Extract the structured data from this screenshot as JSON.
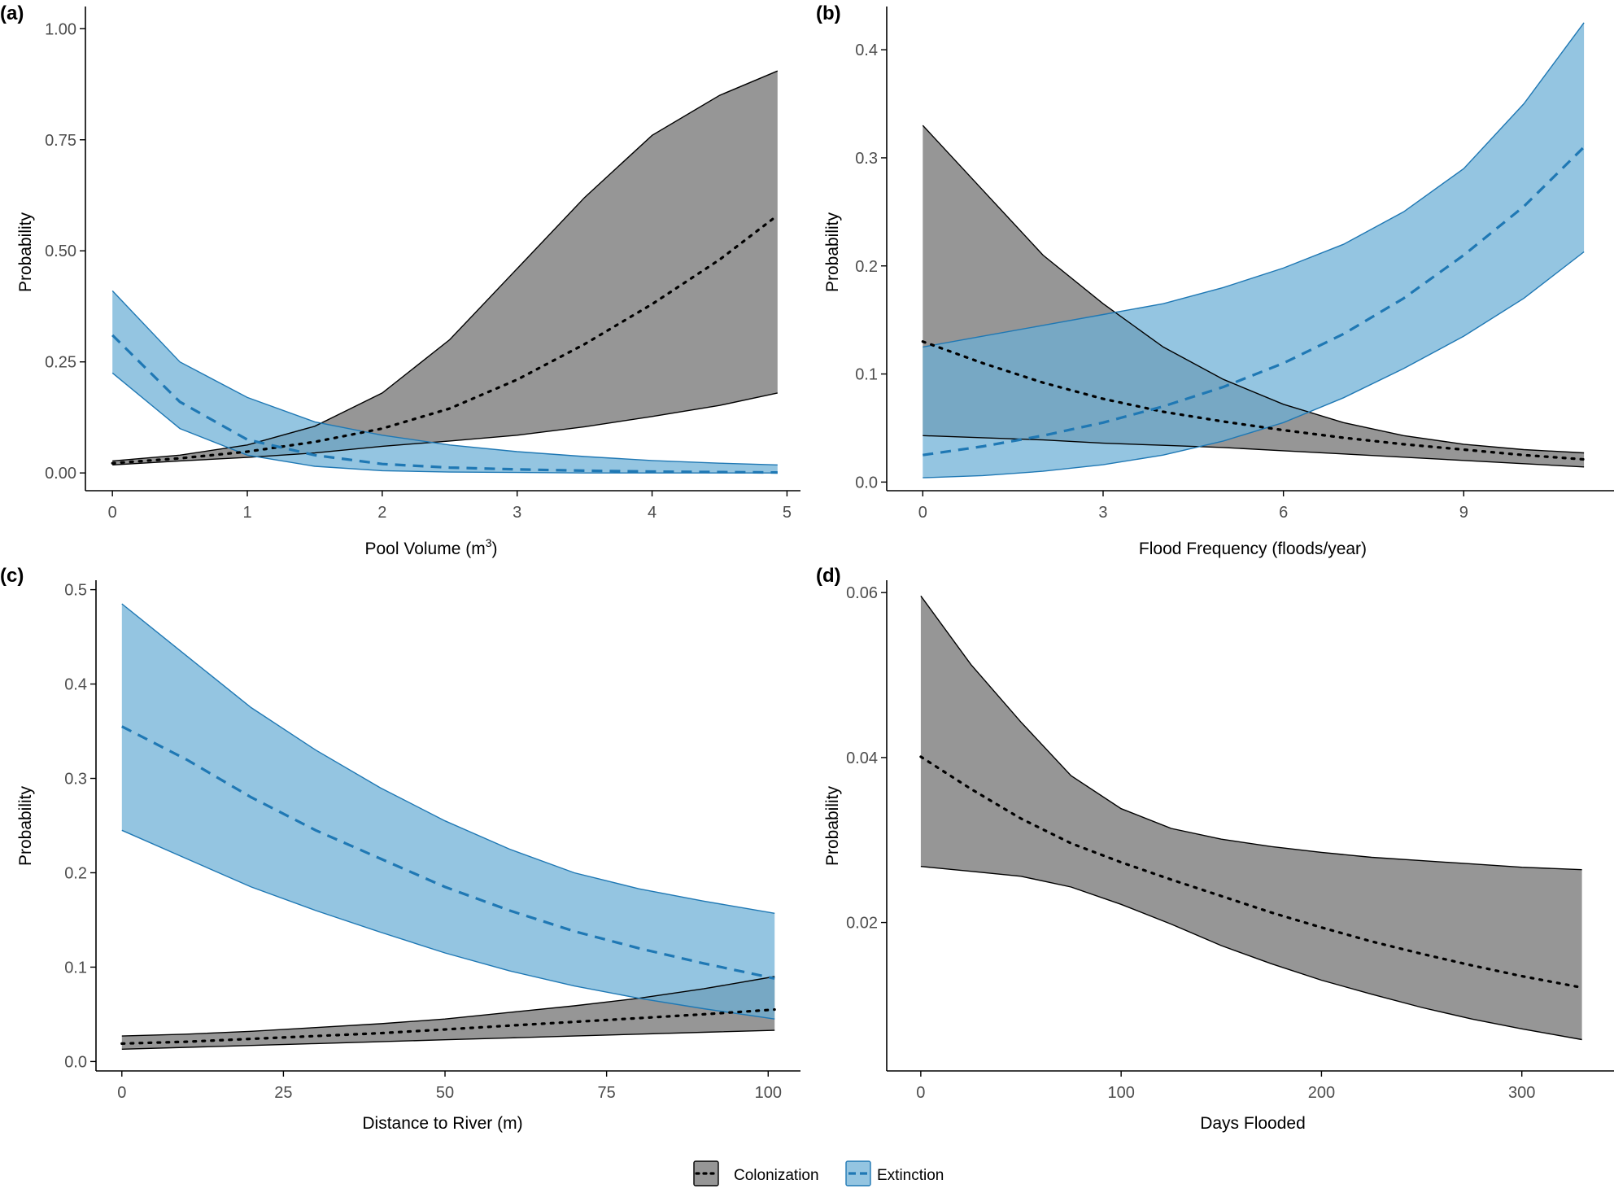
{
  "colors": {
    "colonization_fill": "#7f7f7f",
    "colonization_line": "#000000",
    "extinction_fill": "#6baed6",
    "extinction_line": "#1f78b4",
    "axis": "#000000",
    "tick_label": "#4d4d4d"
  },
  "legend": {
    "items": [
      {
        "key": "colonization",
        "label": "Colonization"
      },
      {
        "key": "extinction",
        "label": "Extinction"
      }
    ]
  },
  "chart_data": [
    {
      "panel_label": "(a)",
      "type": "area",
      "xlabel": "Pool Volume (m",
      "xlabel_sup": "3",
      "xlabel_suffix": ")",
      "ylabel": "Probability",
      "xlim": [
        -0.2,
        5.1
      ],
      "ylim": [
        -0.04,
        1.05
      ],
      "xticks": [
        0,
        1,
        2,
        3,
        4,
        5
      ],
      "xtick_labels": [
        "0",
        "1",
        "2",
        "3",
        "4",
        "5"
      ],
      "yticks": [
        0,
        0.25,
        0.5,
        0.75,
        1.0
      ],
      "ytick_labels": [
        "0.00",
        "0.25",
        "0.50",
        "0.75",
        "1.00"
      ],
      "series": [
        {
          "name": "Colonization",
          "key": "colonization",
          "x": [
            0,
            0.5,
            1,
            1.5,
            2,
            2.5,
            3,
            3.5,
            4,
            4.5,
            4.93
          ],
          "mean": [
            0.022,
            0.033,
            0.048,
            0.07,
            0.1,
            0.145,
            0.21,
            0.29,
            0.38,
            0.48,
            0.58
          ],
          "lower": [
            0.018,
            0.027,
            0.035,
            0.045,
            0.06,
            0.072,
            0.085,
            0.104,
            0.127,
            0.152,
            0.18
          ],
          "upper": [
            0.027,
            0.04,
            0.063,
            0.105,
            0.18,
            0.3,
            0.46,
            0.62,
            0.76,
            0.85,
            0.905
          ]
        },
        {
          "name": "Extinction",
          "key": "extinction",
          "x": [
            0,
            0.5,
            1,
            1.5,
            2,
            2.5,
            3,
            3.5,
            4,
            4.5,
            4.93
          ],
          "mean": [
            0.31,
            0.16,
            0.075,
            0.04,
            0.02,
            0.012,
            0.008,
            0.005,
            0.003,
            0.002,
            0.001
          ],
          "lower": [
            0.225,
            0.1,
            0.04,
            0.015,
            0.005,
            0.002,
            0.001,
            0.0,
            0.0,
            0.0,
            0.0
          ],
          "upper": [
            0.41,
            0.25,
            0.17,
            0.115,
            0.085,
            0.063,
            0.048,
            0.037,
            0.028,
            0.022,
            0.018
          ]
        }
      ]
    },
    {
      "panel_label": "(b)",
      "type": "area",
      "xlabel": "Flood Frequency (floods/year)",
      "ylabel": "Probability",
      "xlim": [
        -0.6,
        11.5
      ],
      "ylim": [
        -0.008,
        0.44
      ],
      "xticks": [
        0,
        3,
        6,
        9
      ],
      "xtick_labels": [
        "0",
        "3",
        "6",
        "9"
      ],
      "yticks": [
        0,
        0.1,
        0.2,
        0.3,
        0.4
      ],
      "ytick_labels": [
        "0.0",
        "0.1",
        "0.2",
        "0.3",
        "0.4"
      ],
      "series": [
        {
          "name": "Colonization",
          "key": "colonization",
          "x": [
            0,
            1,
            2,
            3,
            4,
            5,
            6,
            7,
            8,
            9,
            10,
            11
          ],
          "mean": [
            0.13,
            0.11,
            0.092,
            0.077,
            0.065,
            0.056,
            0.048,
            0.041,
            0.035,
            0.03,
            0.025,
            0.021
          ],
          "lower": [
            0.043,
            0.041,
            0.039,
            0.036,
            0.034,
            0.032,
            0.029,
            0.026,
            0.023,
            0.02,
            0.017,
            0.014
          ],
          "upper": [
            0.33,
            0.27,
            0.21,
            0.165,
            0.125,
            0.095,
            0.072,
            0.055,
            0.043,
            0.035,
            0.03,
            0.027
          ]
        },
        {
          "name": "Extinction",
          "key": "extinction",
          "x": [
            0,
            1,
            2,
            3,
            4,
            5,
            6,
            7,
            8,
            9,
            10,
            11
          ],
          "mean": [
            0.025,
            0.033,
            0.043,
            0.055,
            0.07,
            0.088,
            0.11,
            0.137,
            0.17,
            0.21,
            0.255,
            0.31
          ],
          "lower": [
            0.004,
            0.006,
            0.01,
            0.016,
            0.025,
            0.038,
            0.055,
            0.078,
            0.105,
            0.135,
            0.17,
            0.213
          ],
          "upper": [
            0.125,
            0.135,
            0.145,
            0.155,
            0.165,
            0.18,
            0.198,
            0.22,
            0.25,
            0.29,
            0.35,
            0.425
          ]
        }
      ]
    },
    {
      "panel_label": "(c)",
      "type": "area",
      "xlabel": "Distance to River (m)",
      "ylabel": "Probability",
      "xlim": [
        -4,
        105
      ],
      "ylim": [
        -0.01,
        0.51
      ],
      "xticks": [
        0,
        25,
        50,
        75,
        100
      ],
      "xtick_labels": [
        "0",
        "25",
        "50",
        "75",
        "100"
      ],
      "yticks": [
        0,
        0.1,
        0.2,
        0.3,
        0.4,
        0.5
      ],
      "ytick_labels": [
        "0.0",
        "0.1",
        "0.2",
        "0.3",
        "0.4",
        "0.5"
      ],
      "series": [
        {
          "name": "Colonization",
          "key": "colonization",
          "x": [
            0,
            10,
            20,
            30,
            40,
            50,
            60,
            70,
            80,
            90,
            101
          ],
          "mean": [
            0.019,
            0.021,
            0.024,
            0.027,
            0.03,
            0.034,
            0.038,
            0.042,
            0.046,
            0.05,
            0.055
          ],
          "lower": [
            0.013,
            0.015,
            0.017,
            0.019,
            0.021,
            0.023,
            0.025,
            0.027,
            0.029,
            0.031,
            0.033
          ],
          "upper": [
            0.027,
            0.029,
            0.032,
            0.036,
            0.04,
            0.045,
            0.052,
            0.059,
            0.067,
            0.077,
            0.09
          ]
        },
        {
          "name": "Extinction",
          "key": "extinction",
          "x": [
            0,
            10,
            20,
            30,
            40,
            50,
            60,
            70,
            80,
            90,
            101
          ],
          "mean": [
            0.355,
            0.32,
            0.28,
            0.245,
            0.215,
            0.185,
            0.16,
            0.138,
            0.12,
            0.104,
            0.088
          ],
          "lower": [
            0.245,
            0.215,
            0.185,
            0.16,
            0.137,
            0.115,
            0.096,
            0.08,
            0.067,
            0.056,
            0.045
          ],
          "upper": [
            0.485,
            0.43,
            0.375,
            0.33,
            0.29,
            0.255,
            0.225,
            0.2,
            0.183,
            0.17,
            0.157
          ]
        }
      ]
    },
    {
      "panel_label": "(d)",
      "type": "area",
      "xlabel": "Days Flooded",
      "ylabel": "Probability",
      "xlim": [
        -17,
        346
      ],
      "ylim": [
        0.002,
        0.0615
      ],
      "xticks": [
        0,
        100,
        200,
        300
      ],
      "xtick_labels": [
        "0",
        "100",
        "200",
        "300"
      ],
      "yticks": [
        0.02,
        0.04,
        0.06
      ],
      "ytick_labels": [
        "0.02",
        "0.04",
        "0.06"
      ],
      "series": [
        {
          "name": "Colonization",
          "key": "colonization",
          "x": [
            0,
            25,
            50,
            75,
            100,
            125,
            150,
            175,
            200,
            225,
            250,
            275,
            300,
            330
          ],
          "mean": [
            0.0401,
            0.0362,
            0.0326,
            0.0296,
            0.0273,
            0.0252,
            0.0232,
            0.0212,
            0.0194,
            0.0177,
            0.0162,
            0.0148,
            0.0135,
            0.0121
          ],
          "lower": [
            0.0268,
            0.0262,
            0.0256,
            0.0243,
            0.0222,
            0.0198,
            0.0172,
            0.015,
            0.013,
            0.0113,
            0.0097,
            0.0083,
            0.0071,
            0.0058
          ],
          "upper": [
            0.0596,
            0.0513,
            0.0443,
            0.0378,
            0.0338,
            0.0314,
            0.0301,
            0.0292,
            0.0285,
            0.0279,
            0.0275,
            0.0271,
            0.0267,
            0.0264
          ]
        }
      ]
    }
  ]
}
